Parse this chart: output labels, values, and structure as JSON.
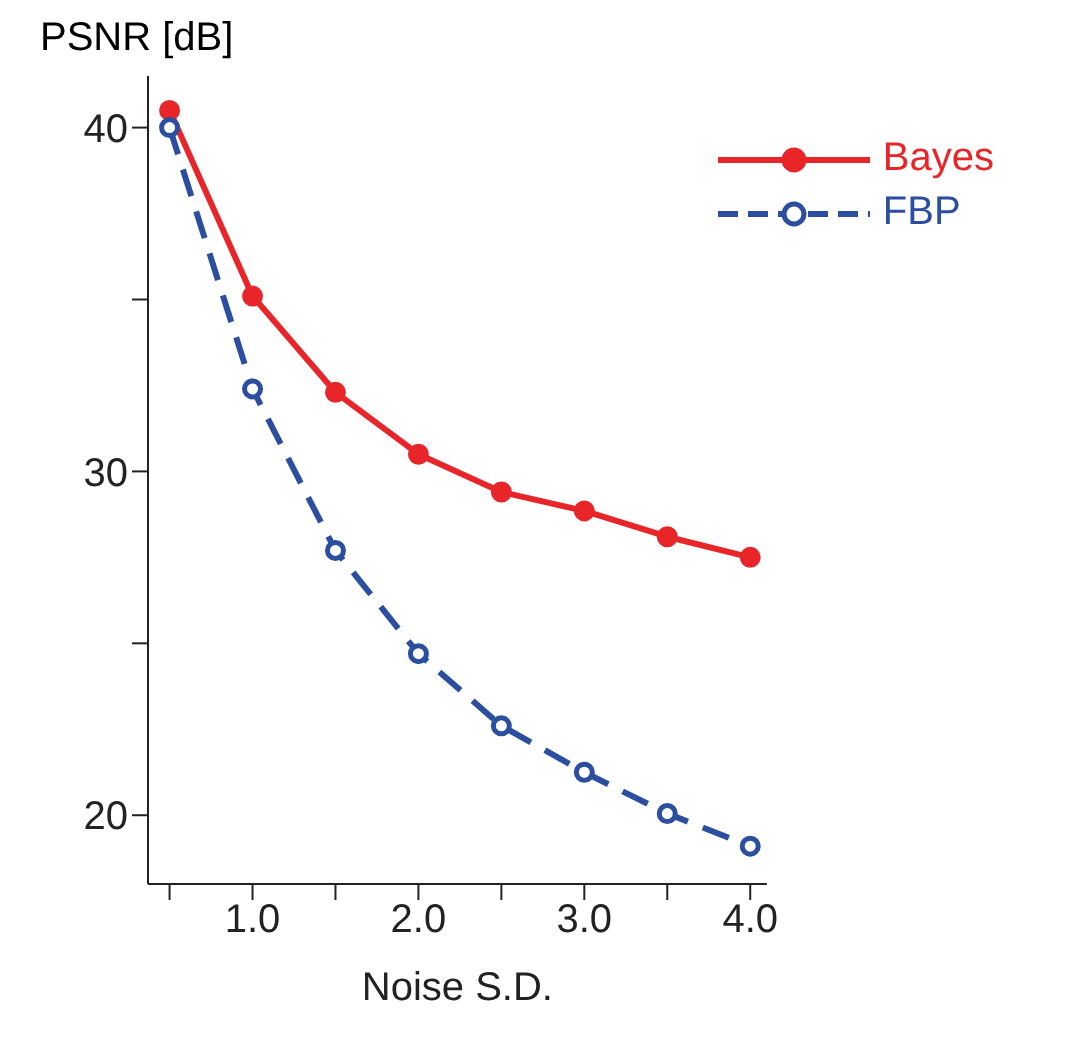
{
  "chart_data": {
    "type": "line",
    "xlabel": "Noise S.D.",
    "ylabel": "PSNR [dB]",
    "x": [
      0.5,
      1.0,
      1.5,
      2.0,
      2.5,
      3.0,
      3.5,
      4.0
    ],
    "series": [
      {
        "name": "Bayes",
        "color": "#e8262a",
        "line_style": "solid",
        "values": [
          40.5,
          35.1,
          32.3,
          30.5,
          29.4,
          28.85,
          28.1,
          27.5
        ]
      },
      {
        "name": "FBP",
        "color": "#2b4ea0",
        "line_style": "dashed",
        "values": [
          40,
          32.4,
          27.7,
          24.7,
          22.6,
          21.25,
          20.05,
          19.1
        ]
      }
    ],
    "xlim": [
      0.37,
      4.1
    ],
    "xticks": [
      {
        "value": 0.5,
        "label": null
      },
      {
        "value": 1,
        "label": "1.0"
      },
      {
        "value": 1.5,
        "label": null
      },
      {
        "value": 2,
        "label": "2.0"
      },
      {
        "value": 2.5,
        "label": null
      },
      {
        "value": 3,
        "label": "3.0"
      },
      {
        "value": 3.5,
        "label": null
      },
      {
        "value": 4,
        "label": "4.0"
      }
    ],
    "ylim": [
      18,
      41.5
    ],
    "yticks": [
      20,
      {
        "value": 25,
        "label": null
      },
      30,
      {
        "value": 35,
        "label": null
      },
      40
    ],
    "grid": false,
    "legend": "top right",
    "marker": "circle"
  }
}
